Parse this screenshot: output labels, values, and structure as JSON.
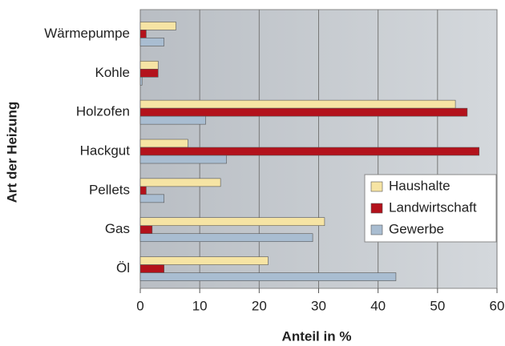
{
  "chart_data": {
    "type": "hbar",
    "x_label": "Anteil in %",
    "y_label": "Art der Heizung",
    "categories": [
      "Wärmepumpe",
      "Kohle",
      "Holzofen",
      "Hackgut",
      "Pellets",
      "Gas",
      "Öl"
    ],
    "series": [
      {
        "name": "Haushalte",
        "color": "#f6e4a4",
        "values": [
          6,
          3,
          53,
          8,
          13.5,
          31,
          21.5
        ]
      },
      {
        "name": "Landwirtschaft",
        "color": "#b3121c",
        "values": [
          1,
          3,
          55,
          57,
          1,
          2,
          4
        ]
      },
      {
        "name": "Gewerbe",
        "color": "#a9bdd1",
        "values": [
          4,
          0.3,
          11,
          14.5,
          4,
          29,
          43
        ]
      }
    ],
    "xlim": [
      0,
      60
    ],
    "xticks": [
      0,
      10,
      20,
      30,
      40,
      50,
      60
    ],
    "grid": true,
    "legend": "right"
  }
}
